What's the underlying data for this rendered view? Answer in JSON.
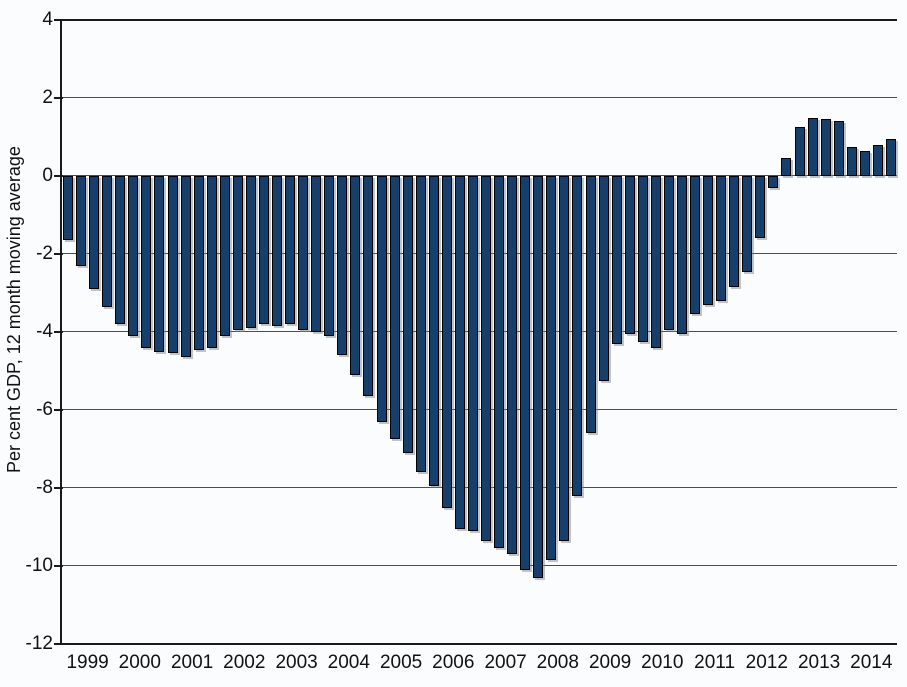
{
  "chart_data": {
    "type": "bar",
    "title": "",
    "ylabel": "Per cent GDP, 12 month moving average",
    "xlabel": "",
    "ylim": [
      -12,
      4
    ],
    "yticks": [
      4,
      2,
      0,
      -2,
      -4,
      -6,
      -8,
      -10,
      -12
    ],
    "grid": "horizontal",
    "legend": "none",
    "bars_per_year": 4,
    "categories": [
      "1999",
      "2000",
      "2001",
      "2002",
      "2003",
      "2004",
      "2005",
      "2006",
      "2007",
      "2008",
      "2009",
      "2010",
      "2011",
      "2012",
      "2013",
      "2014"
    ],
    "series": [
      {
        "name": "Per cent GDP, 12 month moving average",
        "values": [
          -1.65,
          -2.3,
          -2.9,
          -3.35,
          -3.8,
          -4.1,
          -4.4,
          -4.5,
          -4.55,
          -4.65,
          -4.45,
          -4.4,
          -4.1,
          -3.95,
          -3.9,
          -3.8,
          -3.85,
          -3.8,
          -3.95,
          -4.0,
          -4.1,
          -4.6,
          -5.1,
          -5.65,
          -6.3,
          -6.75,
          -7.1,
          -7.6,
          -7.95,
          -8.5,
          -9.05,
          -9.1,
          -9.35,
          -9.55,
          -9.7,
          -10.1,
          -10.3,
          -9.85,
          -9.35,
          -8.2,
          -6.6,
          -5.25,
          -4.3,
          -4.05,
          -4.25,
          -4.4,
          -3.95,
          -4.05,
          -3.55,
          -3.3,
          -3.2,
          -2.85,
          -2.45,
          -1.6,
          -0.3,
          0.45,
          1.25,
          1.5,
          1.45,
          1.4,
          0.75,
          0.65,
          0.8,
          0.95
        ]
      }
    ],
    "colors": {
      "bar_fill": "#16406b",
      "bar_border": "#000000",
      "bar_shadow": "#7d7d7d",
      "gridline": "#4d4d4d",
      "axis": "#1a1a1a",
      "background": "#fbfcfd",
      "text": "#111111"
    }
  }
}
